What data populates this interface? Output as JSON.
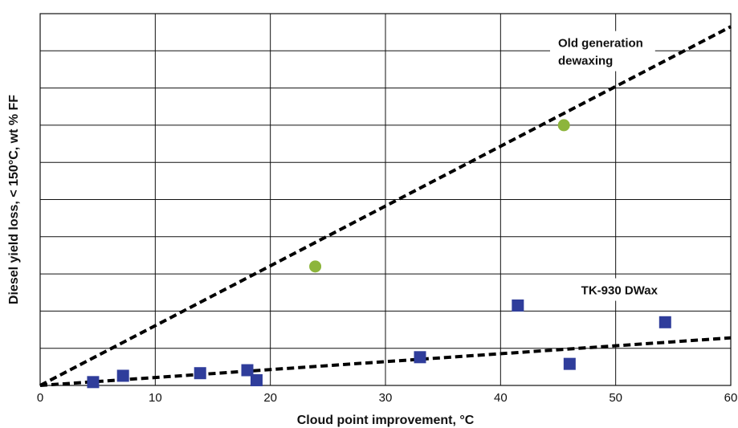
{
  "chart_data": {
    "type": "scatter",
    "xlabel": "Cloud point improvement, °C",
    "ylabel": "Diesel yield loss, < 150°C, wt % FF",
    "xlim": [
      0,
      60
    ],
    "ylim": [
      0,
      10
    ],
    "x_ticks": [
      0,
      10,
      20,
      30,
      40,
      50,
      60
    ],
    "y_gridlines": [
      0,
      1,
      2,
      3,
      4,
      5,
      6,
      7,
      8,
      9,
      10
    ],
    "grid": true,
    "series": [
      {
        "name": "Old generation dewaxing",
        "color": "#8db53c",
        "marker": "circle",
        "points": [
          {
            "x": 23.9,
            "y": 3.2
          },
          {
            "x": 45.5,
            "y": 7.0
          }
        ]
      },
      {
        "name": "TK-930 DWax",
        "color": "#2f3d9b",
        "marker": "square",
        "points": [
          {
            "x": 4.6,
            "y": 0.09
          },
          {
            "x": 7.2,
            "y": 0.26
          },
          {
            "x": 13.9,
            "y": 0.33
          },
          {
            "x": 18.0,
            "y": 0.41
          },
          {
            "x": 18.8,
            "y": 0.14
          },
          {
            "x": 33.0,
            "y": 0.76
          },
          {
            "x": 41.5,
            "y": 2.15
          },
          {
            "x": 46.0,
            "y": 0.58
          },
          {
            "x": 54.3,
            "y": 1.7
          }
        ]
      }
    ],
    "trendlines": [
      {
        "name": "Old generation dewaxing",
        "x": [
          0,
          60
        ],
        "y": [
          0,
          9.65
        ],
        "style": "dashed"
      },
      {
        "name": "TK-930 DWax",
        "x": [
          0,
          60
        ],
        "y": [
          0,
          1.28
        ],
        "style": "dashed"
      }
    ],
    "annotations": [
      {
        "text_lines": [
          "Old generation",
          "dewaxing"
        ],
        "x": 45.0,
        "y": 9.1
      },
      {
        "text_lines": [
          "TK-930 DWax"
        ],
        "x": 47.0,
        "y": 2.45
      }
    ]
  }
}
